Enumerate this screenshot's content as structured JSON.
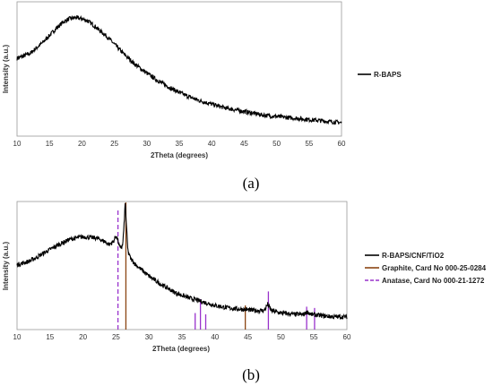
{
  "chart_data": [
    {
      "type": "line",
      "panel_label": "(a)",
      "xlabel": "2Theta (degrees)",
      "ylabel": "Intensity (a.u.)",
      "xlim": [
        10,
        60
      ],
      "ylim": [
        0,
        1
      ],
      "x_ticks": [
        10,
        15,
        20,
        25,
        30,
        35,
        40,
        45,
        50,
        55,
        60
      ],
      "grid": false,
      "legend_position": "right",
      "series": [
        {
          "name": "R-BAPS",
          "color": "#000000",
          "x": [
            10,
            12,
            14,
            16,
            17,
            18,
            19,
            20,
            21,
            22,
            24,
            26,
            28,
            30,
            32,
            34,
            36,
            38,
            40,
            42,
            44,
            46,
            48,
            50,
            52,
            54,
            56,
            58,
            60
          ],
          "y": [
            0.6,
            0.64,
            0.73,
            0.84,
            0.89,
            0.92,
            0.93,
            0.92,
            0.9,
            0.86,
            0.77,
            0.66,
            0.56,
            0.48,
            0.41,
            0.35,
            0.3,
            0.26,
            0.23,
            0.2,
            0.18,
            0.16,
            0.14,
            0.13,
            0.12,
            0.11,
            0.1,
            0.09,
            0.08
          ]
        }
      ]
    },
    {
      "type": "line",
      "panel_label": "(b)",
      "xlabel": "2Theta (degrees)",
      "ylabel": "Intensity (a.u.)",
      "xlim": [
        10,
        60
      ],
      "ylim": [
        0,
        1
      ],
      "x_ticks": [
        10,
        15,
        20,
        25,
        30,
        35,
        40,
        45,
        50,
        55,
        60
      ],
      "grid": false,
      "legend_position": "right",
      "series": [
        {
          "name": "R-BAPS/CNF/TiO2",
          "color": "#000000",
          "x": [
            10,
            12,
            14,
            16,
            18,
            20,
            22,
            23,
            24,
            24.6,
            25,
            25.3,
            25.6,
            26,
            26.2,
            26.4,
            26.6,
            26.8,
            27.2,
            28,
            30,
            32,
            34,
            36,
            38,
            40,
            42,
            44,
            46,
            47.5,
            48,
            48.5,
            50,
            52,
            53.5,
            54,
            54.5,
            56,
            58,
            60
          ],
          "y": [
            0.51,
            0.54,
            0.6,
            0.66,
            0.71,
            0.73,
            0.72,
            0.7,
            0.67,
            0.69,
            0.74,
            0.7,
            0.64,
            0.66,
            0.8,
            1.0,
            0.8,
            0.62,
            0.56,
            0.51,
            0.42,
            0.35,
            0.29,
            0.25,
            0.22,
            0.19,
            0.17,
            0.16,
            0.15,
            0.15,
            0.2,
            0.15,
            0.13,
            0.12,
            0.12,
            0.14,
            0.12,
            0.11,
            0.1,
            0.1
          ]
        },
        {
          "name": "Graphite, Card No 000-25-0284",
          "color": "#8B4513",
          "style": "stick",
          "x": [
            26.5,
            44.6
          ],
          "y": [
            1.0,
            0.19
          ]
        },
        {
          "name": "Anatase, Card No 000-21-1272",
          "color": "#9932CC",
          "style": "stick-dashed",
          "x": [
            25.3,
            37.0,
            37.8,
            38.6,
            48.1,
            53.9,
            55.1
          ],
          "y": [
            0.95,
            0.13,
            0.24,
            0.12,
            0.3,
            0.18,
            0.17
          ]
        }
      ]
    }
  ]
}
